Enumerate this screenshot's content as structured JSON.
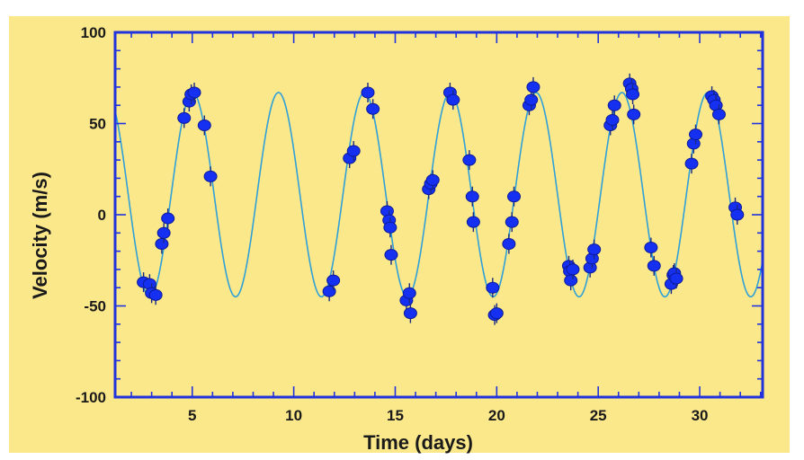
{
  "colors": {
    "background": "#FBE88A",
    "frame": "#2233DD",
    "curve": "#2FA0D8",
    "points": "#1530F0",
    "text": "#1A1A1A"
  },
  "chart_data": {
    "type": "scatter",
    "title": "",
    "xlabel": "Time (days)",
    "ylabel": "Velocity (m/s)",
    "xlim": [
      1.2,
      33.1
    ],
    "ylim": [
      -100,
      100
    ],
    "xticks": [
      5,
      10,
      15,
      20,
      25,
      30
    ],
    "yticks": [
      100,
      50,
      0,
      -50,
      -100
    ],
    "grid": false,
    "legend": "none",
    "fit_curve": {
      "type": "sinusoid",
      "period_days": 4.23,
      "amplitude": 56,
      "offset": 11,
      "peak_at_day": 9.25
    },
    "points": [
      {
        "x": 2.6,
        "y": -37
      },
      {
        "x": 2.9,
        "y": -38
      },
      {
        "x": 3.0,
        "y": -43
      },
      {
        "x": 3.2,
        "y": -44
      },
      {
        "x": 3.5,
        "y": -16
      },
      {
        "x": 3.6,
        "y": -10
      },
      {
        "x": 3.8,
        "y": -2
      },
      {
        "x": 4.6,
        "y": 53
      },
      {
        "x": 4.85,
        "y": 62
      },
      {
        "x": 4.95,
        "y": 66
      },
      {
        "x": 5.1,
        "y": 67
      },
      {
        "x": 5.6,
        "y": 49
      },
      {
        "x": 5.9,
        "y": 21
      },
      {
        "x": 11.75,
        "y": -42
      },
      {
        "x": 11.95,
        "y": -36
      },
      {
        "x": 12.75,
        "y": 31
      },
      {
        "x": 12.95,
        "y": 35
      },
      {
        "x": 13.65,
        "y": 67
      },
      {
        "x": 13.9,
        "y": 58
      },
      {
        "x": 14.6,
        "y": 2
      },
      {
        "x": 14.7,
        "y": -3
      },
      {
        "x": 14.75,
        "y": -7
      },
      {
        "x": 14.8,
        "y": -22
      },
      {
        "x": 15.55,
        "y": -47
      },
      {
        "x": 15.7,
        "y": -43
      },
      {
        "x": 15.75,
        "y": -54
      },
      {
        "x": 16.65,
        "y": 14
      },
      {
        "x": 16.75,
        "y": 17
      },
      {
        "x": 16.85,
        "y": 19
      },
      {
        "x": 17.7,
        "y": 67
      },
      {
        "x": 17.85,
        "y": 63
      },
      {
        "x": 18.65,
        "y": 30
      },
      {
        "x": 18.8,
        "y": 10
      },
      {
        "x": 18.85,
        "y": -4
      },
      {
        "x": 19.8,
        "y": -40
      },
      {
        "x": 19.9,
        "y": -55
      },
      {
        "x": 20.0,
        "y": -54
      },
      {
        "x": 20.6,
        "y": -16
      },
      {
        "x": 20.75,
        "y": -4
      },
      {
        "x": 20.85,
        "y": 10
      },
      {
        "x": 21.6,
        "y": 60
      },
      {
        "x": 21.7,
        "y": 63
      },
      {
        "x": 21.8,
        "y": 70
      },
      {
        "x": 23.55,
        "y": -28
      },
      {
        "x": 23.6,
        "y": -31
      },
      {
        "x": 23.65,
        "y": -36
      },
      {
        "x": 23.75,
        "y": -30
      },
      {
        "x": 24.6,
        "y": -29
      },
      {
        "x": 24.7,
        "y": -24
      },
      {
        "x": 24.8,
        "y": -19
      },
      {
        "x": 25.6,
        "y": 49
      },
      {
        "x": 25.7,
        "y": 52
      },
      {
        "x": 25.8,
        "y": 60
      },
      {
        "x": 26.55,
        "y": 72
      },
      {
        "x": 26.65,
        "y": 69
      },
      {
        "x": 26.7,
        "y": 66
      },
      {
        "x": 26.75,
        "y": 55
      },
      {
        "x": 27.6,
        "y": -18
      },
      {
        "x": 27.75,
        "y": -28
      },
      {
        "x": 28.6,
        "y": -38
      },
      {
        "x": 28.7,
        "y": -33
      },
      {
        "x": 28.75,
        "y": -32
      },
      {
        "x": 28.85,
        "y": -35
      },
      {
        "x": 29.6,
        "y": 28
      },
      {
        "x": 29.7,
        "y": 39
      },
      {
        "x": 29.8,
        "y": 44
      },
      {
        "x": 30.6,
        "y": 65
      },
      {
        "x": 30.7,
        "y": 63
      },
      {
        "x": 30.8,
        "y": 60
      },
      {
        "x": 30.95,
        "y": 55
      },
      {
        "x": 31.75,
        "y": 4
      },
      {
        "x": 31.85,
        "y": 0
      }
    ]
  }
}
